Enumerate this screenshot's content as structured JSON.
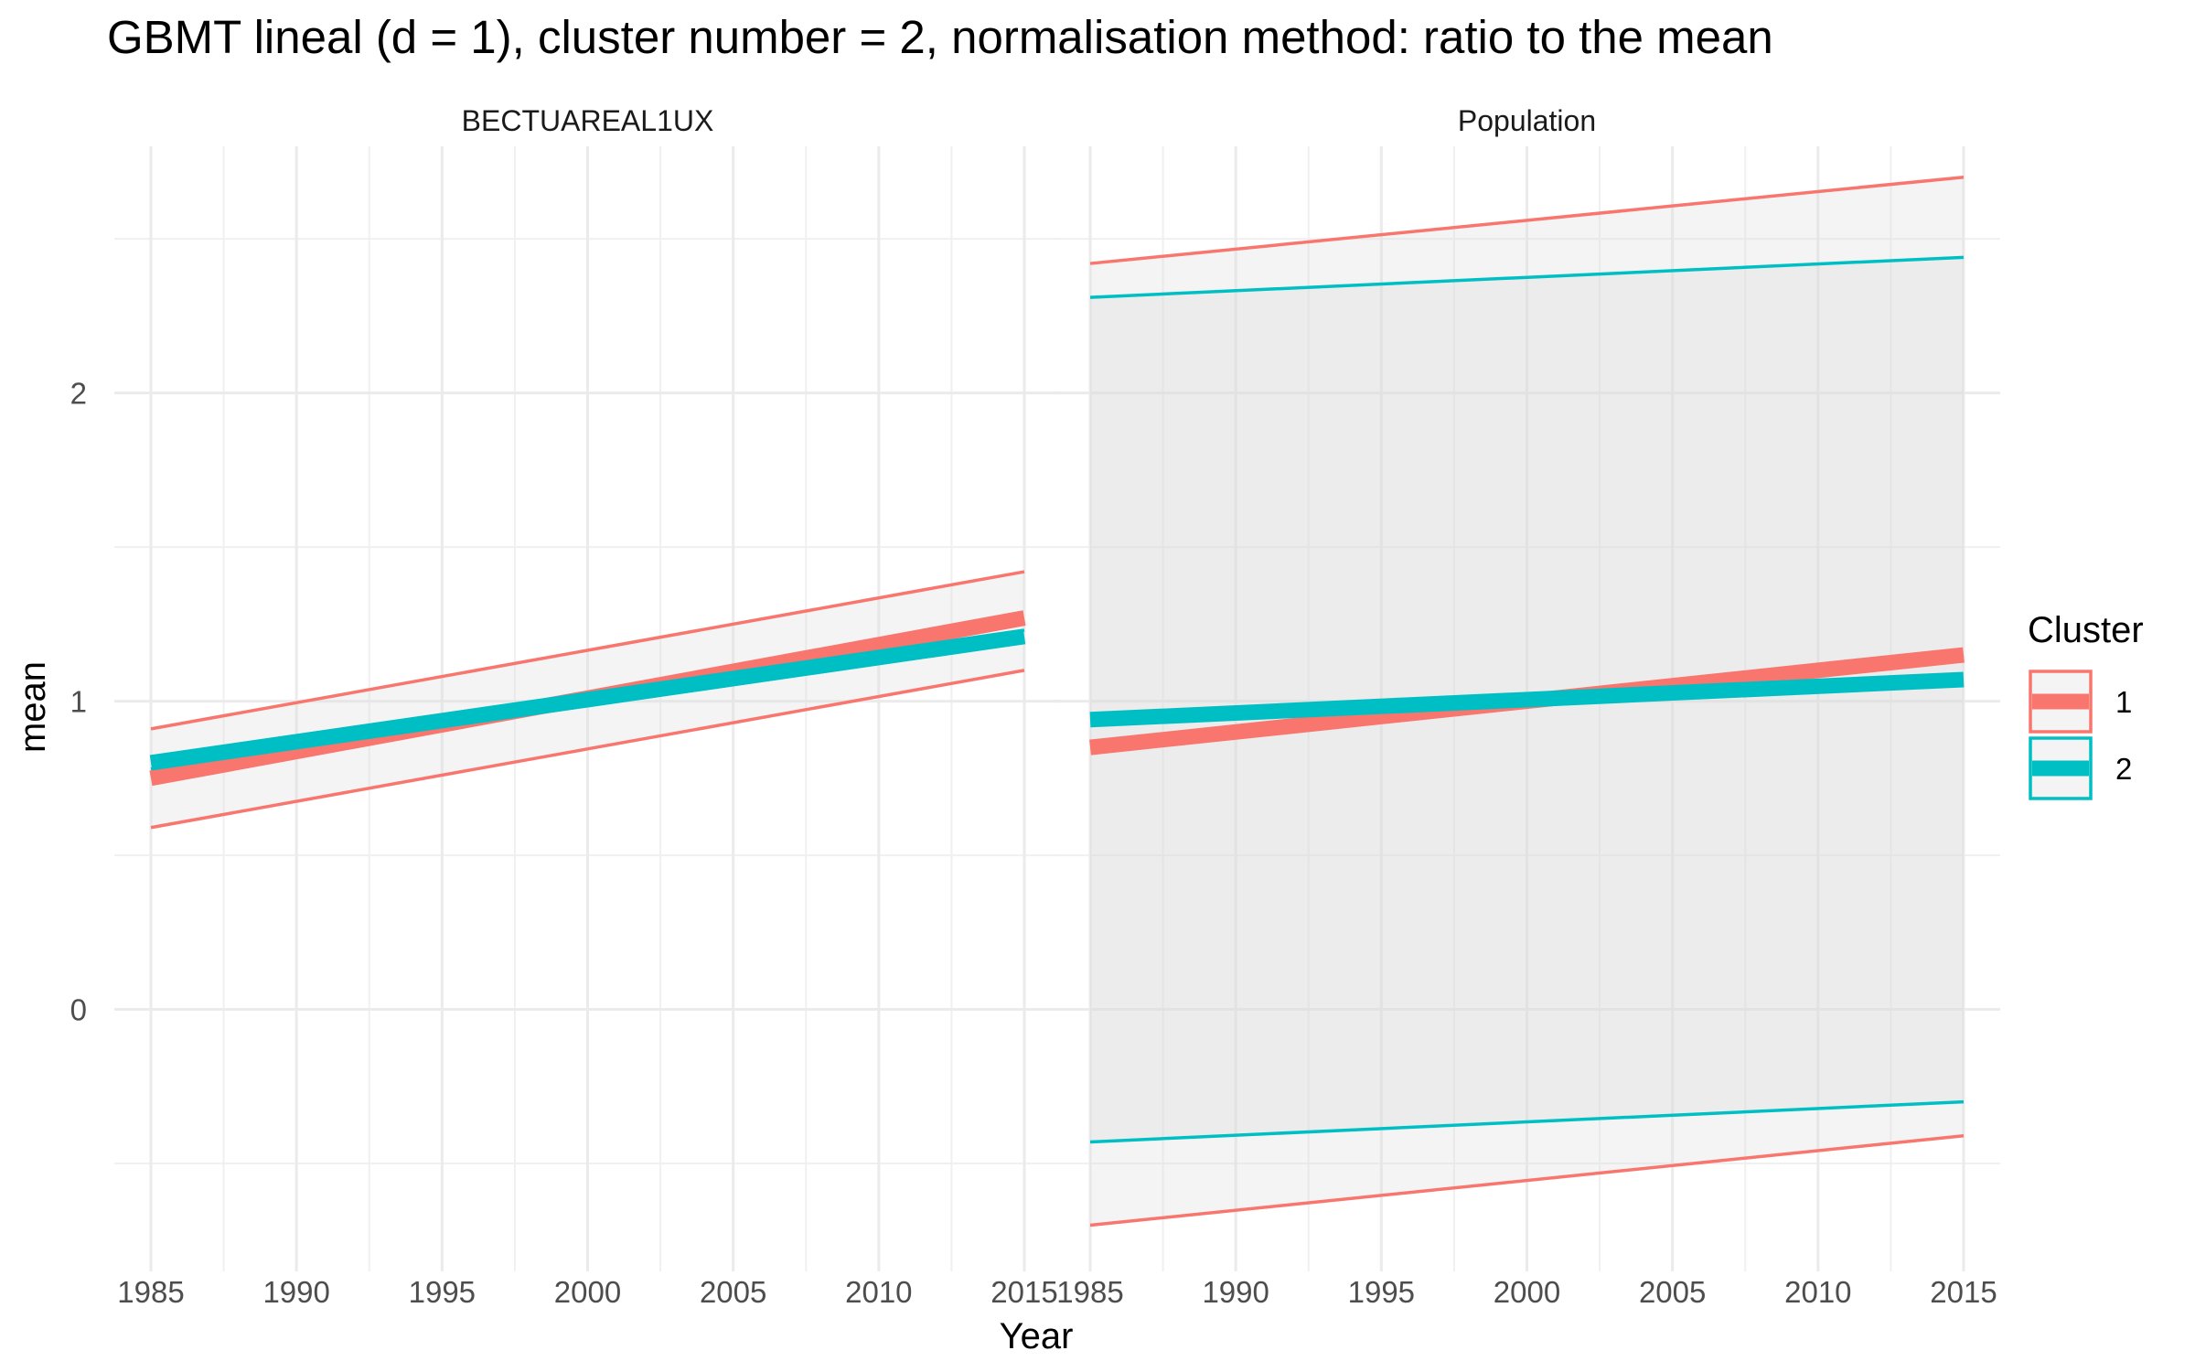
{
  "chart_data": {
    "type": "line",
    "title": "GBMT lineal (d = 1), cluster number = 2, normalisation method: ratio to the mean",
    "xlabel": "Year",
    "ylabel": "mean",
    "x_ticks": [
      1985,
      1990,
      1995,
      2000,
      2005,
      2010,
      2015
    ],
    "y_ticks": [
      0,
      1,
      2
    ],
    "y_tick_labels": [
      "0",
      "1",
      "2"
    ],
    "xlim": [
      1985,
      2015
    ],
    "ylim": [
      -0.85,
      2.8
    ],
    "grid": true,
    "legend": {
      "title": "Cluster",
      "placement": "right",
      "entries": [
        {
          "label": "1",
          "color": "#F8766D"
        },
        {
          "label": "2",
          "color": "#00BFC4"
        }
      ]
    },
    "colors": {
      "cluster1": "#F8766D",
      "cluster2": "#00BFC4",
      "band": "#d9d9d9"
    },
    "panels": [
      {
        "strip": "BECTUAREAL1UX",
        "series": [
          {
            "name": "1",
            "x": [
              1985,
              2015
            ],
            "y": [
              0.75,
              1.27
            ],
            "lower": [
              0.59,
              1.1
            ],
            "upper": [
              0.91,
              1.42
            ]
          },
          {
            "name": "2",
            "x": [
              1985,
              2015
            ],
            "y": [
              0.8,
              1.21
            ],
            "lower": [
              0.78,
              1.19
            ],
            "upper": [
              0.82,
              1.23
            ]
          }
        ]
      },
      {
        "strip": "Population",
        "series": [
          {
            "name": "1",
            "x": [
              1985,
              2015
            ],
            "y": [
              0.85,
              1.15
            ],
            "lower": [
              -0.7,
              -0.41
            ],
            "upper": [
              2.42,
              2.7
            ]
          },
          {
            "name": "2",
            "x": [
              1985,
              2015
            ],
            "y": [
              0.94,
              1.07
            ],
            "lower": [
              -0.43,
              -0.3
            ],
            "upper": [
              2.31,
              2.44
            ]
          }
        ]
      }
    ]
  }
}
